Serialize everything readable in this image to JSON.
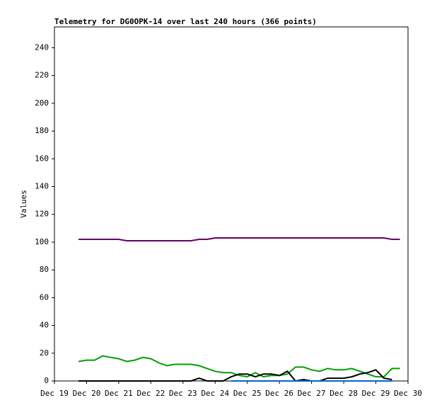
{
  "chart_data": {
    "type": "line",
    "title": "Telemetry for DG0OPK-14 over last 240 hours (366 points)",
    "y_label": "Values",
    "x": [
      0.75,
      1,
      1.25,
      1.5,
      1.75,
      2,
      2.25,
      2.5,
      2.75,
      3,
      3.25,
      3.5,
      3.75,
      4,
      4.25,
      4.5,
      4.75,
      5,
      5.25,
      5.5,
      5.75,
      6,
      6.25,
      6.5,
      6.75,
      7,
      7.25,
      7.5,
      7.75,
      8,
      8.25,
      8.5,
      8.75,
      9,
      9.25,
      9.5,
      9.75,
      10,
      10.25,
      10.5,
      10.75
    ],
    "series": [
      {
        "color": "#660066",
        "values": [
          102,
          102,
          102,
          102,
          102,
          102,
          101,
          101,
          101,
          101,
          101,
          101,
          101,
          101,
          101,
          102,
          102,
          103,
          103,
          103,
          103,
          103,
          103,
          103,
          103,
          103,
          103,
          103,
          103,
          103,
          103,
          103,
          103,
          103,
          103,
          103,
          103,
          103,
          103,
          102,
          102
        ]
      },
      {
        "color": "#00a000",
        "values": [
          14,
          15,
          15,
          18,
          17,
          16,
          14,
          15,
          17,
          16,
          13,
          11,
          12,
          12,
          12,
          11,
          9,
          7,
          6,
          6,
          4,
          3,
          6,
          3,
          4,
          4,
          5,
          10,
          10,
          8,
          7,
          9,
          8,
          8,
          9,
          7,
          5,
          3,
          3,
          9,
          9
        ]
      },
      {
        "color": "#000000",
        "values": [
          0,
          0,
          0,
          0,
          0,
          0,
          0,
          0,
          0,
          0,
          0,
          0,
          0,
          0,
          0,
          2,
          0,
          0,
          0,
          3,
          5,
          5,
          3,
          5,
          5,
          4,
          7,
          0,
          1,
          0,
          0,
          2,
          2,
          2,
          3,
          5,
          6,
          8,
          2,
          1,
          null
        ]
      },
      {
        "color": "#0066cc",
        "values": [
          null,
          null,
          null,
          null,
          null,
          null,
          null,
          null,
          null,
          null,
          null,
          null,
          null,
          null,
          null,
          null,
          null,
          null,
          null,
          0,
          0,
          0,
          0,
          0,
          0,
          0,
          0,
          0,
          0,
          0,
          0,
          0,
          0,
          0,
          0,
          0,
          0,
          0,
          0,
          0,
          null
        ]
      }
    ],
    "xlim": [
      0,
      11
    ],
    "xticks": [
      {
        "value": 0,
        "label": "Dec 19"
      },
      {
        "value": 1,
        "label": "Dec 20"
      },
      {
        "value": 2,
        "label": "Dec 21"
      },
      {
        "value": 3,
        "label": "Dec 22"
      },
      {
        "value": 4,
        "label": "Dec 23"
      },
      {
        "value": 5,
        "label": "Dec 24"
      },
      {
        "value": 6,
        "label": "Dec 25"
      },
      {
        "value": 7,
        "label": "Dec 26"
      },
      {
        "value": 8,
        "label": "Dec 27"
      },
      {
        "value": 9,
        "label": "Dec 28"
      },
      {
        "value": 10,
        "label": "Dec 29"
      },
      {
        "value": 11,
        "label": "Dec 30"
      }
    ],
    "ylim": [
      0,
      255
    ],
    "yticks": [
      0,
      20,
      40,
      60,
      80,
      100,
      120,
      140,
      160,
      180,
      200,
      220,
      240
    ]
  }
}
